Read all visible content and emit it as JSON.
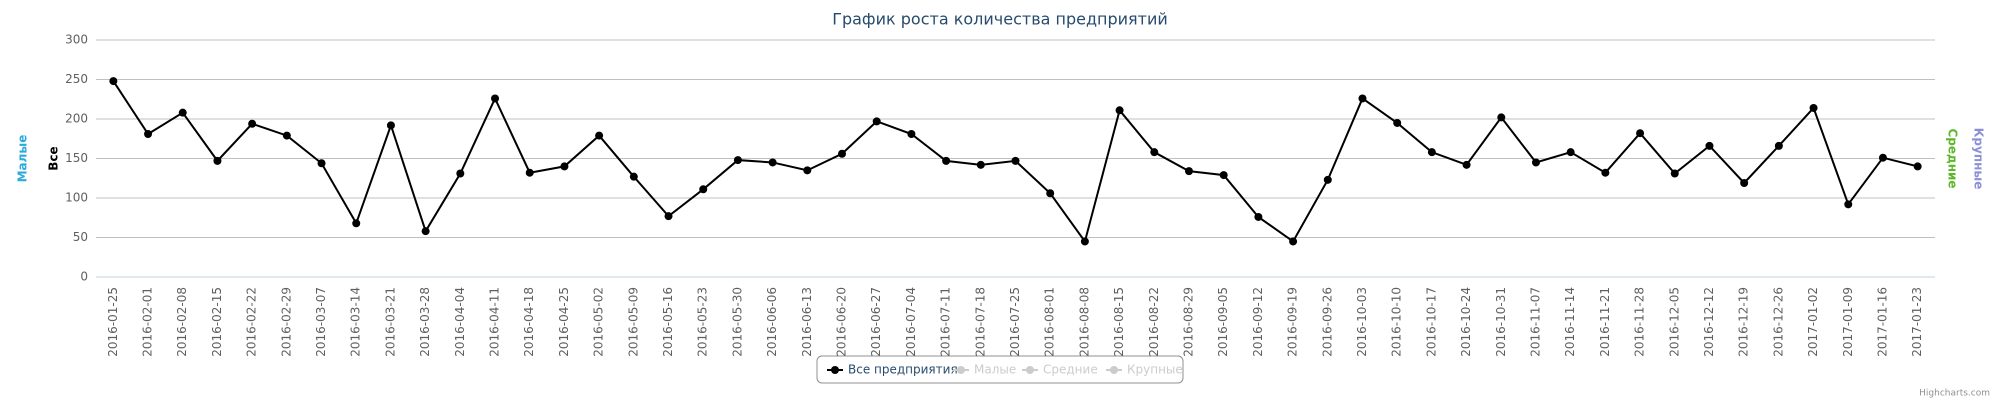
{
  "chart_data": {
    "type": "line",
    "title": "График роста количества предприятий",
    "categories": [
      "2016-01-25",
      "2016-02-01",
      "2016-02-08",
      "2016-02-15",
      "2016-02-22",
      "2016-02-29",
      "2016-03-07",
      "2016-03-14",
      "2016-03-21",
      "2016-03-28",
      "2016-04-04",
      "2016-04-11",
      "2016-04-18",
      "2016-04-25",
      "2016-05-02",
      "2016-05-09",
      "2016-05-16",
      "2016-05-23",
      "2016-05-30",
      "2016-06-06",
      "2016-06-13",
      "2016-06-20",
      "2016-06-27",
      "2016-07-04",
      "2016-07-11",
      "2016-07-18",
      "2016-07-25",
      "2016-08-01",
      "2016-08-08",
      "2016-08-15",
      "2016-08-22",
      "2016-08-29",
      "2016-09-05",
      "2016-09-12",
      "2016-09-19",
      "2016-09-26",
      "2016-10-03",
      "2016-10-10",
      "2016-10-17",
      "2016-10-24",
      "2016-10-31",
      "2016-11-07",
      "2016-11-14",
      "2016-11-21",
      "2016-11-28",
      "2016-12-05",
      "2016-12-12",
      "2016-12-19",
      "2016-12-26",
      "2017-01-02",
      "2017-01-09",
      "2017-01-16",
      "2017-01-23"
    ],
    "series": [
      {
        "name": "Все предприятия",
        "color": "#000000",
        "visible": true,
        "values": [
          248,
          181,
          208,
          147,
          194,
          179,
          144,
          68,
          192,
          58,
          131,
          226,
          132,
          140,
          179,
          127,
          77,
          111,
          148,
          145,
          135,
          156,
          197,
          181,
          147,
          142,
          147,
          106,
          45,
          211,
          158,
          134,
          129,
          76,
          45,
          123,
          226,
          195,
          158,
          142,
          202,
          145,
          158,
          132,
          182,
          131,
          166,
          119,
          166,
          214,
          92,
          151,
          140
        ]
      },
      {
        "name": "Малые",
        "color": "#cccccc",
        "visible": false
      },
      {
        "name": "Средние",
        "color": "#cccccc",
        "visible": false
      },
      {
        "name": "Крупные",
        "color": "#cccccc",
        "visible": false
      }
    ],
    "y_axis_titles_left": [
      {
        "text": "Малые",
        "color": "#2caadb"
      },
      {
        "text": "Все",
        "color": "#000000"
      }
    ],
    "y_axis_titles_right": [
      {
        "text": "Средние",
        "color": "#5cb82a"
      },
      {
        "text": "Крупные",
        "color": "#8a8fd6"
      }
    ],
    "ylim": [
      0,
      300
    ],
    "yticks": [
      0,
      50,
      100,
      150,
      200,
      250,
      300
    ],
    "grid": true,
    "credits": "Highcharts.com"
  }
}
